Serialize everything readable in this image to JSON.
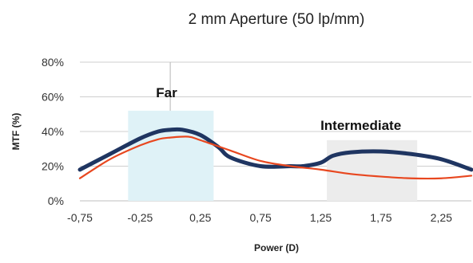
{
  "chart_data": {
    "type": "line",
    "title": "2 mm Aperture (50 lp/mm)",
    "xlabel": "Power (D)",
    "ylabel": "MTF (%)",
    "xlim": [
      -0.75,
      2.5
    ],
    "ylim": [
      0,
      80
    ],
    "x_ticks": [
      "-0,75",
      "-0,25",
      "0,25",
      "0,75",
      "1,25",
      "1,75",
      "2,25"
    ],
    "x_tick_values": [
      -0.75,
      -0.25,
      0.25,
      0.75,
      1.25,
      1.75,
      2.25
    ],
    "y_ticks": [
      "0%",
      "20%",
      "40%",
      "60%",
      "80%"
    ],
    "y_tick_values": [
      0,
      20,
      40,
      60,
      80
    ],
    "grid": "horizontal",
    "vertical_reference_x": 0.0,
    "series": [
      {
        "color": "#1f3561",
        "x": [
          -0.75,
          -0.5,
          -0.25,
          -0.1,
          0.0,
          0.1,
          0.25,
          0.4,
          0.5,
          0.75,
          1.0,
          1.1,
          1.25,
          1.35,
          1.5,
          1.75,
          2.0,
          2.25,
          2.5
        ],
        "y": [
          18,
          27,
          36,
          40,
          41,
          41,
          38,
          31,
          25,
          20,
          20,
          20,
          22,
          26,
          28,
          28.5,
          27,
          24,
          18
        ]
      },
      {
        "color": "#e8471f",
        "x": [
          -0.75,
          -0.5,
          -0.25,
          -0.1,
          0.0,
          0.15,
          0.25,
          0.5,
          0.75,
          1.0,
          1.25,
          1.5,
          1.75,
          2.0,
          2.25,
          2.5
        ],
        "y": [
          13,
          24,
          32,
          35.5,
          36.5,
          37,
          35,
          29,
          23,
          20,
          18,
          15.5,
          14,
          13,
          13,
          14.5
        ]
      }
    ],
    "annotations": [
      {
        "label": "Far",
        "x_range": [
          -0.35,
          0.36
        ],
        "y_range": [
          0,
          52
        ],
        "color": "#dff2f7"
      },
      {
        "label": "Intermediate",
        "x_range": [
          1.3,
          2.05
        ],
        "y_range": [
          0,
          35
        ],
        "color": "#ececec"
      }
    ]
  }
}
